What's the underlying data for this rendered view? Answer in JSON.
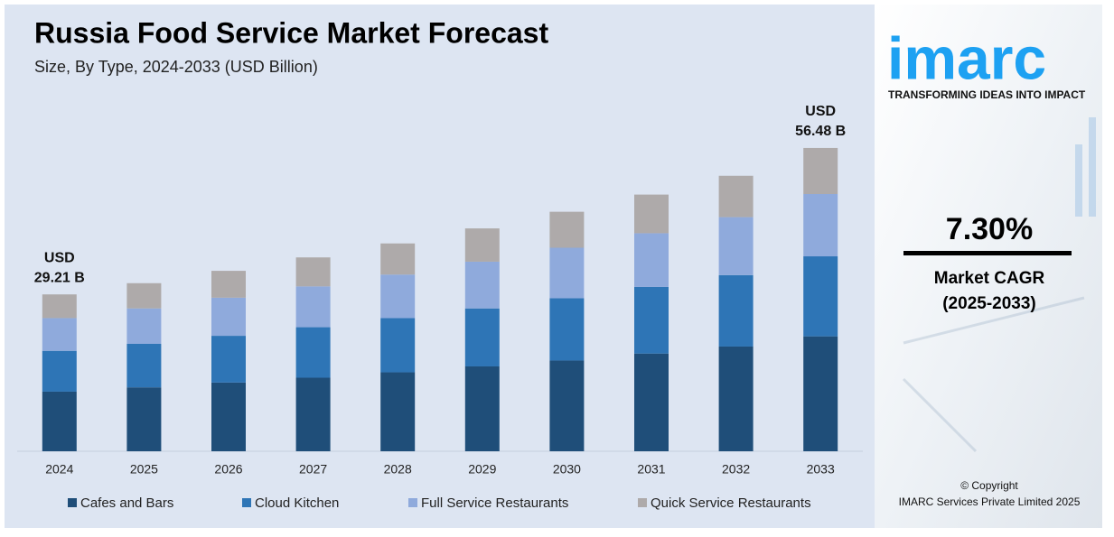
{
  "chart_data": {
    "type": "stacked-bar",
    "title": "Russia Food Service Market Forecast",
    "subtitle": "Size, By Type, 2024-2033 (USD Billion)",
    "categories": [
      "2024",
      "2025",
      "2026",
      "2027",
      "2028",
      "2029",
      "2030",
      "2031",
      "2032",
      "2033"
    ],
    "series": [
      {
        "name": "Cafes and Bars",
        "color": "#1f4e79",
        "values": [
          11.1,
          11.9,
          12.8,
          13.7,
          14.7,
          15.8,
          16.9,
          18.2,
          19.5,
          21.4
        ]
      },
      {
        "name": "Cloud Kitchen",
        "color": "#2e75b6",
        "values": [
          7.6,
          8.1,
          8.7,
          9.4,
          10.1,
          10.8,
          11.6,
          12.4,
          13.3,
          14.9
        ]
      },
      {
        "name": "Full Service Restaurants",
        "color": "#8faadc",
        "values": [
          6.1,
          6.6,
          7.1,
          7.6,
          8.1,
          8.7,
          9.4,
          10.0,
          10.8,
          11.6
        ]
      },
      {
        "name": "Quick Service Restaurants",
        "color": "#aeaaaa",
        "values": [
          4.41,
          4.7,
          5.0,
          5.4,
          5.8,
          6.2,
          6.7,
          7.2,
          7.7,
          8.58
        ]
      }
    ],
    "annotations": [
      {
        "lines": [
          "USD",
          "29.21 B"
        ]
      },
      {
        "lines": [
          "USD",
          "56.48 B"
        ]
      }
    ],
    "ylim": [
      0,
      60
    ],
    "legend": "bottom"
  },
  "side_panel": {
    "logo": "imarc",
    "tagline": "TRANSFORMING IDEAS INTO IMPACT",
    "cagr": "7.30%",
    "cagr_label": "Market CAGR",
    "cagr_period": "(2025-2033)",
    "copyright": "© Copyright",
    "company": "IMARC Services Private Limited 2025"
  }
}
